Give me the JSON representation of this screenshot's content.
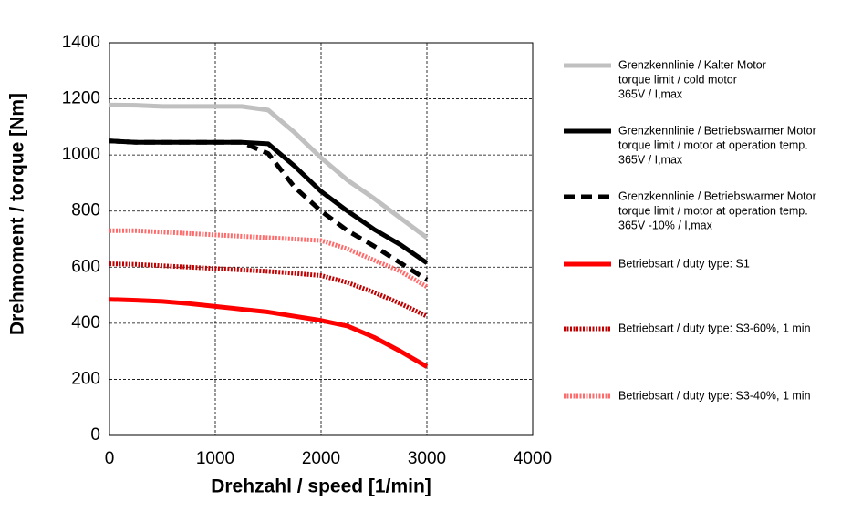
{
  "chart_data": {
    "type": "line",
    "xlabel": "Drehzahl / speed [1/min]",
    "ylabel": "Drehmoment / torque [Nm]",
    "x": [
      0,
      250,
      500,
      750,
      1000,
      1250,
      1500,
      1750,
      2000,
      2250,
      2500,
      2750,
      3000
    ],
    "series": [
      {
        "name": [
          "Grenzkennlinie / Kalter Motor",
          "torque limit / cold  motor",
          "365V / I,max"
        ],
        "color": "#c0c0c0",
        "style": "solid",
        "values": [
          1178,
          1177,
          1173,
          1173,
          1173,
          1173,
          1160,
          1080,
          990,
          910,
          845,
          775,
          705
        ]
      },
      {
        "name": [
          "Grenzkennlinie / Betriebswarmer Motor",
          "torque limit / motor at operation temp.",
          "365V / I,max"
        ],
        "color": "#000000",
        "style": "solid",
        "values": [
          1050,
          1045,
          1045,
          1045,
          1045,
          1045,
          1040,
          960,
          870,
          800,
          735,
          680,
          615
        ]
      },
      {
        "name": [
          "Grenzkennlinie / Betriebswarmer Motor",
          "torque limit / motor at operation temp.",
          "365V -10% / I,max"
        ],
        "color": "#000000",
        "style": "dashed",
        "values": [
          1050,
          1045,
          1045,
          1045,
          1045,
          1045,
          1005,
          885,
          800,
          730,
          675,
          615,
          555
        ]
      },
      {
        "name": [
          "Betriebsart / duty type: S1"
        ],
        "color": "#ff0000",
        "style": "solid",
        "values": [
          485,
          482,
          478,
          470,
          460,
          450,
          440,
          425,
          410,
          390,
          350,
          300,
          245
        ]
      },
      {
        "name": [
          "Betriebsart / duty type: S3-60%, 1 min"
        ],
        "color": "#c00000",
        "style": "dotted",
        "values": [
          612,
          610,
          605,
          600,
          595,
          590,
          585,
          578,
          570,
          545,
          510,
          470,
          425
        ]
      },
      {
        "name": [
          "Betriebsart / duty type: S3-40%, 1 min"
        ],
        "color": "#ff6b6b",
        "style": "dotted",
        "values": [
          730,
          730,
          725,
          720,
          715,
          710,
          705,
          700,
          695,
          665,
          625,
          585,
          530
        ]
      }
    ],
    "xlim": [
      0,
      4000
    ],
    "xticks": [
      0,
      1000,
      2000,
      3000,
      4000
    ],
    "ylim": [
      0,
      1400
    ],
    "yticks": [
      0,
      200,
      400,
      600,
      800,
      1000,
      1200,
      1400
    ],
    "grid": true,
    "legend": "right"
  }
}
